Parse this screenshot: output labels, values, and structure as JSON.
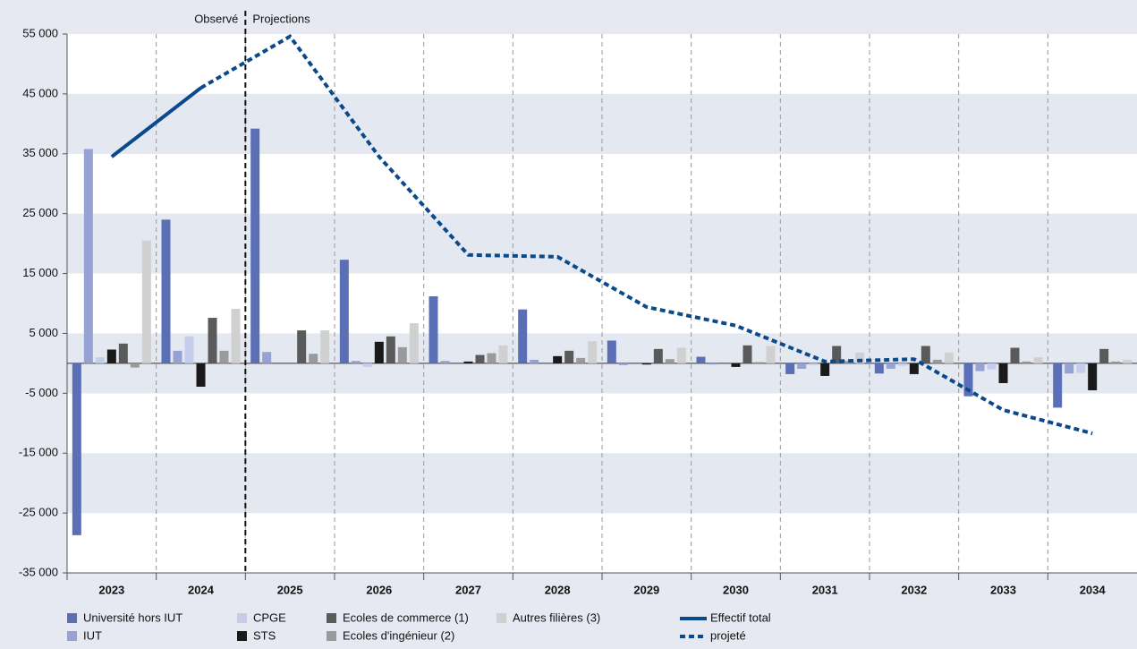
{
  "chart_data": {
    "type": "bar",
    "annotations": [
      "Observé",
      "Projections"
    ],
    "categories": [
      "2023",
      "2024",
      "2025",
      "2026",
      "2027",
      "2028",
      "2029",
      "2030",
      "2031",
      "2032",
      "2033",
      "2034"
    ],
    "ylim": [
      -35000,
      55000
    ],
    "yticks": [
      {
        "value": -35000,
        "label": "-35 000"
      },
      {
        "value": -25000,
        "label": "-25 000"
      },
      {
        "value": -15000,
        "label": "-15 000"
      },
      {
        "value": -5000,
        "label": "-5 000"
      },
      {
        "value": 5000,
        "label": "5 000"
      },
      {
        "value": 15000,
        "label": "15 000"
      },
      {
        "value": 25000,
        "label": "25 000"
      },
      {
        "value": 35000,
        "label": "35 000"
      },
      {
        "value": 45000,
        "label": "45 000"
      },
      {
        "value": 55000,
        "label": "55 000"
      }
    ],
    "series": [
      {
        "name": "Université hors IUT",
        "color": "#5a6fb5",
        "values": [
          -28700,
          24000,
          39200,
          17300,
          11200,
          9000,
          3800,
          1100,
          -1800,
          -1700,
          -5500,
          -7400
        ]
      },
      {
        "name": "IUT",
        "color": "#96a2d3",
        "values": [
          35800,
          2100,
          1900,
          400,
          400,
          600,
          -300,
          -200,
          -900,
          -900,
          -1300,
          -1700
        ]
      },
      {
        "name": "CPGE",
        "color": "#c6cdec",
        "values": [
          1000,
          4500,
          0,
          -600,
          0,
          0,
          0,
          0,
          -300,
          -400,
          -1000,
          -1600
        ]
      },
      {
        "name": "STS",
        "color": "#1a1a1a",
        "values": [
          2300,
          -3900,
          0,
          3600,
          300,
          1200,
          -200,
          -600,
          -2100,
          -1800,
          -3300,
          -4500
        ]
      },
      {
        "name": "Ecoles de commerce (1)",
        "color": "#5a5a5a",
        "values": [
          3300,
          7600,
          5500,
          4500,
          1400,
          2100,
          2400,
          3000,
          2900,
          2900,
          2600,
          2400
        ]
      },
      {
        "name": "Ecoles d'ingénieur (2)",
        "color": "#9a9a9a",
        "values": [
          -700,
          2100,
          1600,
          2700,
          1700,
          900,
          700,
          200,
          400,
          600,
          300,
          300
        ]
      },
      {
        "name": "Autres filières (3)",
        "color": "#d0d0d0",
        "values": [
          20500,
          9100,
          5500,
          6700,
          3000,
          3700,
          2600,
          2900,
          1800,
          1800,
          1000,
          600
        ]
      }
    ],
    "lines": [
      {
        "name": "Effectif total",
        "color": "#0a4a8c",
        "style": "solid",
        "values": [
          34500,
          46000,
          null,
          null,
          null,
          null,
          null,
          null,
          null,
          null,
          null,
          null
        ]
      },
      {
        "name": "projeté",
        "color": "#0a4a8c",
        "style": "dotted",
        "values": [
          null,
          46000,
          54600,
          34500,
          18100,
          17800,
          9400,
          6300,
          300,
          700,
          -7800,
          -11700
        ]
      }
    ]
  }
}
